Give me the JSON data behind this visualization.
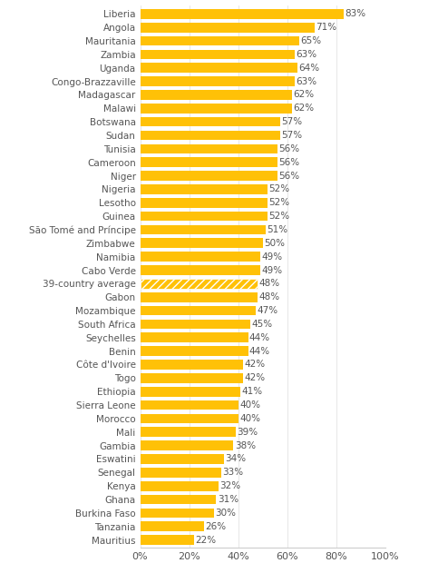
{
  "categories": [
    "Liberia",
    "Angola",
    "Mauritania",
    "Zambia",
    "Uganda",
    "Congo-Brazzaville",
    "Madagascar",
    "Malawi",
    "Botswana",
    "Sudan",
    "Tunisia",
    "Cameroon",
    "Niger",
    "Nigeria",
    "Lesotho",
    "Guinea",
    "São Tomé and Príncipe",
    "Zimbabwe",
    "Namibia",
    "Cabo Verde",
    "39-country average",
    "Gabon",
    "Mozambique",
    "South Africa",
    "Seychelles",
    "Benin",
    "Côte d'Ivoire",
    "Togo",
    "Ethiopia",
    "Sierra Leone",
    "Morocco",
    "Mali",
    "Gambia",
    "Eswatini",
    "Senegal",
    "Kenya",
    "Ghana",
    "Burkina Faso",
    "Tanzania",
    "Mauritius"
  ],
  "values": [
    83,
    71,
    65,
    63,
    64,
    63,
    62,
    62,
    57,
    57,
    56,
    56,
    56,
    52,
    52,
    52,
    51,
    50,
    49,
    49,
    48,
    48,
    47,
    45,
    44,
    44,
    42,
    42,
    41,
    40,
    40,
    39,
    38,
    34,
    33,
    32,
    31,
    30,
    26,
    22
  ],
  "bar_color": "#FFC107",
  "average_hatch": "////",
  "average_index": 20,
  "bg_color": "#FFFFFF",
  "label_color": "#555555",
  "value_color": "#555555",
  "xlim": [
    0,
    100
  ],
  "xtick_values": [
    0,
    20,
    40,
    60,
    80,
    100
  ],
  "xtick_labels": [
    "0%",
    "20%",
    "40%",
    "60%",
    "80%",
    "100%"
  ],
  "bar_height": 0.72,
  "label_fontsize": 7.5,
  "value_fontsize": 7.5,
  "tick_fontsize": 8.0,
  "figsize": [
    4.83,
    6.42
  ],
  "dpi": 100
}
